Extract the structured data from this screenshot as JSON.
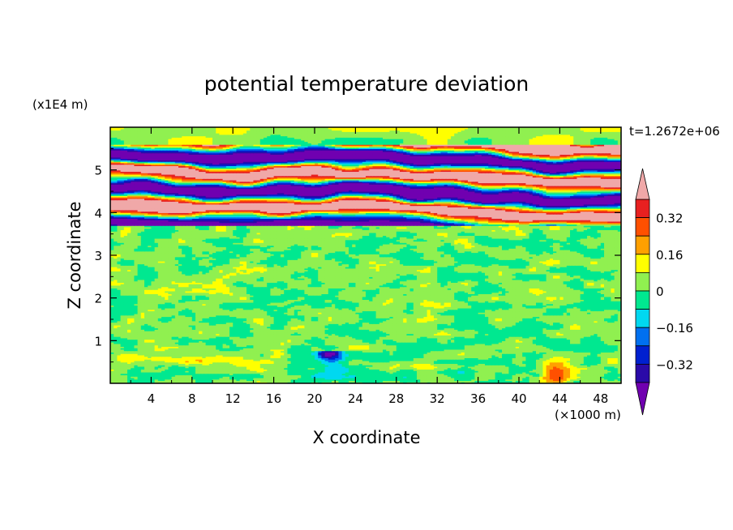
{
  "chart_data": {
    "type": "heatmap",
    "title": "potential temperature deviation",
    "xlabel": "X coordinate",
    "ylabel": "Z coordinate",
    "x_unit": "(×1000 m)",
    "y_unit": "(x1E4 m)",
    "annotation": "t=1.2672e+06",
    "xlim": [
      0,
      50
    ],
    "ylim": [
      0,
      6
    ],
    "x_ticks": [
      "4",
      "8",
      "12",
      "16",
      "20",
      "24",
      "28",
      "32",
      "36",
      "40",
      "44",
      "48"
    ],
    "y_ticks": [
      "1",
      "2",
      "3",
      "4",
      "5"
    ],
    "colorbar": {
      "labels": [
        "0.32",
        "0.16",
        "0",
        "−0.16",
        "−0.32"
      ],
      "label_values": [
        0.32,
        0.16,
        0,
        -0.16,
        -0.32
      ],
      "levels": [
        -0.4,
        -0.32,
        -0.24,
        -0.16,
        -0.08,
        0,
        0.08,
        0.16,
        0.24,
        0.32,
        0.4
      ],
      "colors": [
        "#7000b0",
        "#2a0aa8",
        "#0020d0",
        "#0070f0",
        "#00d8f0",
        "#00e890",
        "#90f050",
        "#ffff00",
        "#ffa000",
        "#ff5000",
        "#e82020",
        "#f0a8a8"
      ],
      "extend": "both"
    },
    "field_description_values": {
      "lower_layer_z_range": [
        0,
        3.7
      ],
      "upper_layer_z_range": [
        3.7,
        5.6
      ],
      "strat_layer_z_range": [
        5.6,
        6
      ],
      "cold_anomaly": {
        "x": 21.5,
        "z": 0.7
      },
      "warm_anomaly": {
        "x": 43.5,
        "z": 0.2
      }
    }
  }
}
